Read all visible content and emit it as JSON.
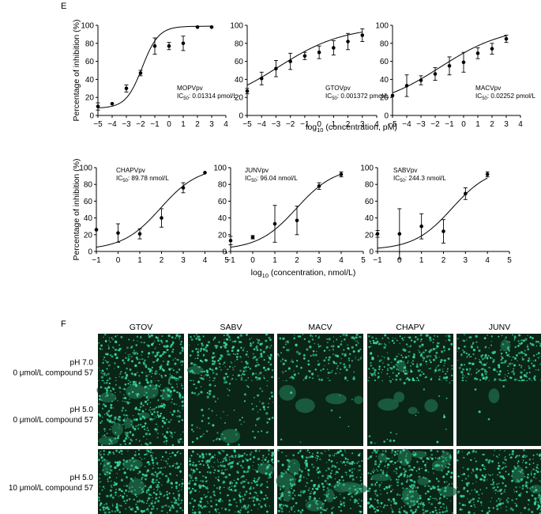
{
  "panel_e": {
    "letter": "E"
  },
  "panel_f": {
    "letter": "F"
  },
  "chart_data": [
    {
      "type": "scatter",
      "name": "MOPVpv",
      "annotation": {
        "label": "MOPVpv",
        "ic50_label": "IC50: 0.01314 pmol/L",
        "ic50_prefix": "IC",
        "ic50_sub": "50",
        "ic50_value": ": 0.01314 pmol/L"
      },
      "x": [
        -5,
        -4,
        -3,
        -2,
        -1,
        0,
        1,
        2,
        3
      ],
      "y": [
        10,
        13,
        30,
        47,
        77,
        77,
        80,
        98,
        98
      ],
      "err": [
        4,
        0,
        4,
        3,
        9,
        4,
        8,
        0,
        0
      ],
      "fit": {
        "bottom": 8,
        "top": 99,
        "log_ic50": -1.88,
        "hill": 0.75
      },
      "xlim": [
        -5,
        4
      ],
      "ylim": [
        0,
        100
      ],
      "xticks": [
        -5,
        -4,
        -3,
        -2,
        -1,
        0,
        1,
        2,
        3,
        4
      ],
      "yticks": [
        0,
        20,
        40,
        60,
        80,
        100
      ],
      "ylabel": "Percentage of inhibition (%)",
      "xlabel": ""
    },
    {
      "type": "scatter",
      "name": "GTOVpv",
      "annotation": {
        "label": "GTOVpv",
        "ic50_label": "IC50: 0.001372 pmol/L",
        "ic50_prefix": "IC",
        "ic50_sub": "50",
        "ic50_value": ": 0.001372 pmol/L"
      },
      "x": [
        -5,
        -4,
        -3,
        -2,
        -1,
        0,
        1,
        2,
        3
      ],
      "y": [
        27,
        41,
        52,
        60,
        66,
        70,
        75,
        82,
        89
      ],
      "err": [
        3,
        7,
        9,
        9,
        4,
        7,
        8,
        9,
        7
      ],
      "fit": {
        "bottom": 8,
        "top": 99,
        "log_ic50": -2.86,
        "hill": 0.19
      },
      "xlim": [
        -5,
        4
      ],
      "ylim": [
        0,
        100
      ],
      "xticks": [
        -5,
        -4,
        -3,
        -2,
        -1,
        0,
        1,
        2,
        3,
        4
      ],
      "yticks": [
        0,
        20,
        40,
        60,
        80,
        100
      ],
      "ylabel": "",
      "xlabel": "log10 (concentration, pM)"
    },
    {
      "type": "scatter",
      "name": "MACVpv",
      "annotation": {
        "label": "MACVpv",
        "ic50_label": "IC50: 0.02252 pmol/L",
        "ic50_prefix": "IC",
        "ic50_sub": "50",
        "ic50_value": ": 0.02252 pmol/L"
      },
      "x": [
        -5,
        -4,
        -3,
        -2,
        -1,
        0,
        1,
        2,
        3
      ],
      "y": [
        22,
        33,
        39,
        46,
        55,
        59,
        69,
        74,
        85
      ],
      "err": [
        0,
        12,
        5,
        7,
        10,
        11,
        6,
        6,
        4
      ],
      "fit": {
        "bottom": 8,
        "top": 99,
        "log_ic50": -1.65,
        "hill": 0.19
      },
      "xlim": [
        -5,
        4
      ],
      "ylim": [
        0,
        100
      ],
      "xticks": [
        -5,
        -4,
        -3,
        -2,
        -1,
        0,
        1,
        2,
        3,
        4
      ],
      "yticks": [
        0,
        20,
        40,
        60,
        80,
        100
      ],
      "ylabel": "",
      "xlabel": ""
    },
    {
      "type": "scatter",
      "name": "CHAPVpv",
      "annotation": {
        "label": "CHAPVpv",
        "ic50_label": "IC50: 89.78 nmol/L",
        "ic50_prefix": "IC",
        "ic50_sub": "50",
        "ic50_value": ": 89.78 nmol/L"
      },
      "x": [
        -1,
        0,
        1,
        2,
        3,
        4
      ],
      "y": [
        26,
        22,
        21,
        40,
        76,
        94
      ],
      "err": [
        0,
        11,
        6,
        11,
        6,
        0
      ],
      "fit": {
        "bottom": 2,
        "top": 101,
        "log_ic50": 1.95,
        "hill": 0.5
      },
      "xlim": [
        -1,
        5
      ],
      "ylim": [
        0,
        100
      ],
      "xticks": [
        -1,
        0,
        1,
        2,
        3,
        4,
        5
      ],
      "yticks": [
        0,
        20,
        40,
        60,
        80,
        100
      ],
      "ylabel": "Percentage of inhibition (%)",
      "xlabel": ""
    },
    {
      "type": "scatter",
      "name": "JUNVpv",
      "annotation": {
        "label": "JUNVpv",
        "ic50_label": "IC50: 96.04 nmol/L",
        "ic50_prefix": "IC",
        "ic50_sub": "50",
        "ic50_value": ": 96.04 nmol/L"
      },
      "x": [
        -1,
        0,
        1,
        2,
        3,
        4
      ],
      "y": [
        13,
        17,
        33,
        37,
        78,
        92
      ],
      "err": [
        5,
        2,
        22,
        17,
        4,
        3
      ],
      "fit": {
        "bottom": 2,
        "top": 101,
        "log_ic50": 1.98,
        "hill": 0.5
      },
      "xlim": [
        -1,
        5
      ],
      "ylim": [
        0,
        100
      ],
      "xticks": [
        -1,
        0,
        1,
        2,
        3,
        4,
        5
      ],
      "yticks": [
        0,
        20,
        40,
        60,
        80,
        100
      ],
      "ylabel": "",
      "xlabel": "log10 (concentration, nmol/L)"
    },
    {
      "type": "scatter",
      "name": "SABVpv",
      "annotation": {
        "label": "SABVpv",
        "ic50_label": "IC50: 244.3 nmol/L",
        "ic50_prefix": "IC",
        "ic50_sub": "50",
        "ic50_value": ": 244.3 nmol/L"
      },
      "x": [
        -1,
        0,
        1,
        2,
        3,
        4
      ],
      "y": [
        21,
        21,
        30,
        24,
        69,
        92
      ],
      "err": [
        4,
        30,
        15,
        14,
        7,
        3
      ],
      "fit": {
        "bottom": 2,
        "top": 101,
        "log_ic50": 2.39,
        "hill": 0.5
      },
      "xlim": [
        -1,
        5
      ],
      "ylim": [
        0,
        100
      ],
      "xticks": [
        -1,
        0,
        1,
        2,
        3,
        4,
        5
      ],
      "yticks": [
        0,
        20,
        40,
        60,
        80,
        100
      ],
      "ylabel": "",
      "xlabel": ""
    }
  ],
  "xlabel_top": {
    "prefix": "log",
    "sub": "10",
    "rest": " (concentration, pM)"
  },
  "xlabel_bottom": {
    "prefix": "log",
    "sub": "10",
    "rest": " (concentration, nmol/L)"
  },
  "micrograph_grid": {
    "columns": [
      "GTOV",
      "SABV",
      "MACV",
      "CHAPV",
      "JUNV"
    ],
    "rows": [
      {
        "line1": "pH 7.0",
        "line2": "0 μmol/L compound 57",
        "density": [
          0.85,
          0.85,
          0.6,
          0.85,
          0.85
        ],
        "blob": [
          0.1,
          0.1,
          0.05,
          0.1,
          0.1
        ]
      },
      {
        "line1": "pH 5.0",
        "line2": "0 μmol/L compound 57",
        "density": [
          0.8,
          0.25,
          0.02,
          0.05,
          0.01
        ],
        "blob": [
          0.6,
          0.1,
          0.3,
          0.25,
          0.05
        ]
      },
      {
        "line1": "pH 5.0",
        "line2": "10 μmol/L compound 57",
        "density": [
          0.9,
          0.9,
          0.75,
          0.85,
          0.7
        ],
        "blob": [
          0.2,
          0.1,
          0.6,
          0.7,
          0.15
        ]
      }
    ],
    "colors": {
      "background": "#0a2416",
      "cell": "#39d7a0",
      "glow": "#1f6b4a"
    }
  }
}
